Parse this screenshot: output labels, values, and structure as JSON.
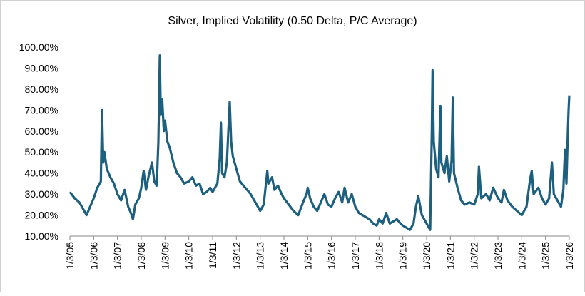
{
  "chart_data": {
    "type": "line",
    "title": "Silver, Implied Volatility (0.50 Delta, P/C Average)",
    "color": "#1c5f7e",
    "ylim": [
      10,
      100
    ],
    "yticks": [
      {
        "value": 10,
        "label": "10.00%"
      },
      {
        "value": 20,
        "label": "20.00%"
      },
      {
        "value": 30,
        "label": "30.00%"
      },
      {
        "value": 40,
        "label": "40.00%"
      },
      {
        "value": 50,
        "label": "50.00%"
      },
      {
        "value": 60,
        "label": "60.00%"
      },
      {
        "value": 70,
        "label": "70.00%"
      },
      {
        "value": 80,
        "label": "80.00%"
      },
      {
        "value": 90,
        "label": "90.00%"
      },
      {
        "value": 100,
        "label": "100.00%"
      }
    ],
    "xlim": [
      2005,
      2026
    ],
    "xticks": [
      {
        "value": 2005,
        "label": "1/3/05"
      },
      {
        "value": 2006,
        "label": "1/3/06"
      },
      {
        "value": 2007,
        "label": "1/3/07"
      },
      {
        "value": 2008,
        "label": "1/3/08"
      },
      {
        "value": 2009,
        "label": "1/3/09"
      },
      {
        "value": 2010,
        "label": "1/3/10"
      },
      {
        "value": 2011,
        "label": "1/3/11"
      },
      {
        "value": 2012,
        "label": "1/3/12"
      },
      {
        "value": 2013,
        "label": "1/3/13"
      },
      {
        "value": 2014,
        "label": "1/3/14"
      },
      {
        "value": 2015,
        "label": "1/3/15"
      },
      {
        "value": 2016,
        "label": "1/3/16"
      },
      {
        "value": 2017,
        "label": "1/3/17"
      },
      {
        "value": 2018,
        "label": "1/3/18"
      },
      {
        "value": 2019,
        "label": "1/3/19"
      },
      {
        "value": 2020,
        "label": "1/3/20"
      },
      {
        "value": 2021,
        "label": "1/3/21"
      },
      {
        "value": 2022,
        "label": "1/3/22"
      },
      {
        "value": 2023,
        "label": "1/3/23"
      },
      {
        "value": 2024,
        "label": "1/3/24"
      },
      {
        "value": 2025,
        "label": "1/3/25"
      },
      {
        "value": 2026,
        "label": "1/3/26"
      }
    ],
    "x": [
      2005.0,
      2005.2,
      2005.4,
      2005.6,
      2005.7,
      2005.85,
      2006.0,
      2006.15,
      2006.3,
      2006.35,
      2006.4,
      2006.45,
      2006.55,
      2006.7,
      2006.85,
      2007.0,
      2007.15,
      2007.3,
      2007.45,
      2007.6,
      2007.65,
      2007.75,
      2007.9,
      2008.0,
      2008.1,
      2008.2,
      2008.3,
      2008.45,
      2008.55,
      2008.65,
      2008.72,
      2008.78,
      2008.82,
      2008.88,
      2008.95,
      2009.0,
      2009.1,
      2009.2,
      2009.35,
      2009.5,
      2009.65,
      2009.8,
      2010.0,
      2010.15,
      2010.3,
      2010.45,
      2010.6,
      2010.75,
      2010.9,
      2011.0,
      2011.2,
      2011.3,
      2011.35,
      2011.4,
      2011.5,
      2011.6,
      2011.72,
      2011.78,
      2011.85,
      2012.0,
      2012.15,
      2012.3,
      2012.45,
      2012.6,
      2012.8,
      2013.0,
      2013.15,
      2013.3,
      2013.35,
      2013.5,
      2013.6,
      2013.75,
      2013.9,
      2014.0,
      2014.2,
      2014.4,
      2014.6,
      2014.8,
      2014.95,
      2015.0,
      2015.1,
      2015.25,
      2015.4,
      2015.55,
      2015.7,
      2015.85,
      2016.0,
      2016.15,
      2016.3,
      2016.45,
      2016.55,
      2016.7,
      2016.85,
      2017.0,
      2017.15,
      2017.3,
      2017.45,
      2017.6,
      2017.75,
      2017.9,
      2018.0,
      2018.15,
      2018.3,
      2018.45,
      2018.6,
      2018.75,
      2018.9,
      2019.0,
      2019.15,
      2019.3,
      2019.45,
      2019.55,
      2019.65,
      2019.8,
      2019.95,
      2020.05,
      2020.15,
      2020.22,
      2020.25,
      2020.3,
      2020.4,
      2020.5,
      2020.58,
      2020.62,
      2020.75,
      2020.85,
      2020.95,
      2021.05,
      2021.1,
      2021.15,
      2021.3,
      2021.45,
      2021.6,
      2021.8,
      2022.0,
      2022.15,
      2022.2,
      2022.3,
      2022.5,
      2022.65,
      2022.8,
      2023.0,
      2023.15,
      2023.25,
      2023.4,
      2023.6,
      2023.8,
      2024.0,
      2024.2,
      2024.35,
      2024.42,
      2024.5,
      2024.7,
      2024.85,
      2025.0,
      2025.15,
      2025.27,
      2025.35,
      2025.5,
      2025.65,
      2025.75,
      2025.82,
      2025.88,
      2025.94,
      2025.97,
      2026.0
    ],
    "values": [
      31,
      28,
      26,
      22,
      20,
      24,
      28,
      33,
      36,
      70,
      45,
      50,
      42,
      38,
      35,
      30,
      27,
      32,
      24,
      20,
      18,
      25,
      28,
      33,
      41,
      32,
      38,
      45,
      36,
      34,
      55,
      96,
      68,
      75,
      60,
      65,
      55,
      52,
      45,
      40,
      38,
      35,
      36,
      38,
      34,
      35,
      30,
      31,
      33,
      31,
      35,
      47,
      64,
      40,
      38,
      45,
      74,
      55,
      48,
      42,
      36,
      34,
      32,
      30,
      26,
      22,
      25,
      41,
      35,
      38,
      32,
      34,
      30,
      28,
      25,
      22,
      20,
      26,
      30,
      33,
      28,
      24,
      22,
      26,
      30,
      25,
      24,
      28,
      31,
      26,
      33,
      26,
      30,
      24,
      21,
      20,
      19,
      18,
      16,
      15,
      18,
      16,
      21,
      16,
      17,
      18,
      16,
      15,
      14,
      13,
      16,
      24,
      29,
      20,
      17,
      15,
      13,
      60,
      89,
      55,
      42,
      38,
      72,
      45,
      40,
      48,
      36,
      46,
      76,
      40,
      33,
      27,
      25,
      26,
      25,
      30,
      43,
      28,
      30,
      27,
      33,
      28,
      26,
      32,
      27,
      24,
      22,
      20,
      24,
      37,
      41,
      30,
      33,
      28,
      25,
      28,
      45,
      30,
      27,
      24,
      32,
      51,
      35,
      60,
      70,
      77
    ]
  }
}
